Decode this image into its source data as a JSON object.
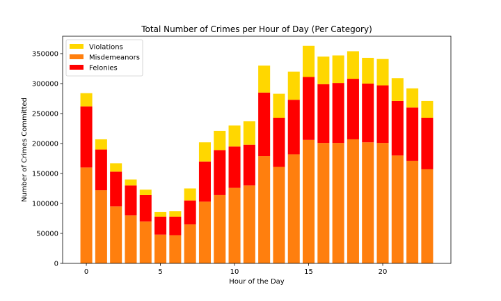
{
  "chart_data": {
    "type": "bar",
    "stacked": true,
    "title": "Total Number of Crimes per Hour of Day (Per Category)",
    "xlabel": "Hour of the Day",
    "ylabel": "Number of Crimes Committed",
    "x": [
      0,
      1,
      2,
      3,
      4,
      5,
      6,
      7,
      8,
      9,
      10,
      11,
      12,
      13,
      14,
      15,
      16,
      17,
      18,
      19,
      20,
      21,
      22,
      23
    ],
    "xticks": [
      0,
      5,
      10,
      15,
      20
    ],
    "xlim": [
      -1.6,
      24.6
    ],
    "ylim": [
      0,
      379000
    ],
    "yticks": [
      0,
      50000,
      100000,
      150000,
      200000,
      250000,
      300000,
      350000
    ],
    "grid": false,
    "legend_position": "top-left",
    "legend_order": [
      "Violations",
      "Misdemeanors",
      "Felonies"
    ],
    "series": [
      {
        "name": "Misdemeanors",
        "color": "#ff7f0e",
        "values": [
          160000,
          122000,
          95000,
          80000,
          70000,
          48000,
          47000,
          65000,
          103000,
          114000,
          126000,
          130000,
          179000,
          161000,
          182000,
          206000,
          201000,
          201000,
          207000,
          202000,
          201000,
          180000,
          171000,
          157000
        ]
      },
      {
        "name": "Felonies",
        "color": "#ff0000",
        "values": [
          102000,
          68000,
          58000,
          50000,
          44000,
          30000,
          31000,
          40000,
          67000,
          75000,
          69000,
          68000,
          106000,
          82000,
          91000,
          105000,
          98000,
          100000,
          101000,
          98000,
          96000,
          91000,
          89000,
          86000
        ]
      },
      {
        "name": "Violations",
        "color": "#ffd700",
        "values": [
          22000,
          17000,
          14000,
          10000,
          9000,
          8000,
          9000,
          20000,
          32000,
          32000,
          35000,
          39000,
          45000,
          40000,
          47000,
          52000,
          46000,
          46000,
          46000,
          43000,
          44000,
          38000,
          32000,
          28000
        ]
      }
    ]
  }
}
